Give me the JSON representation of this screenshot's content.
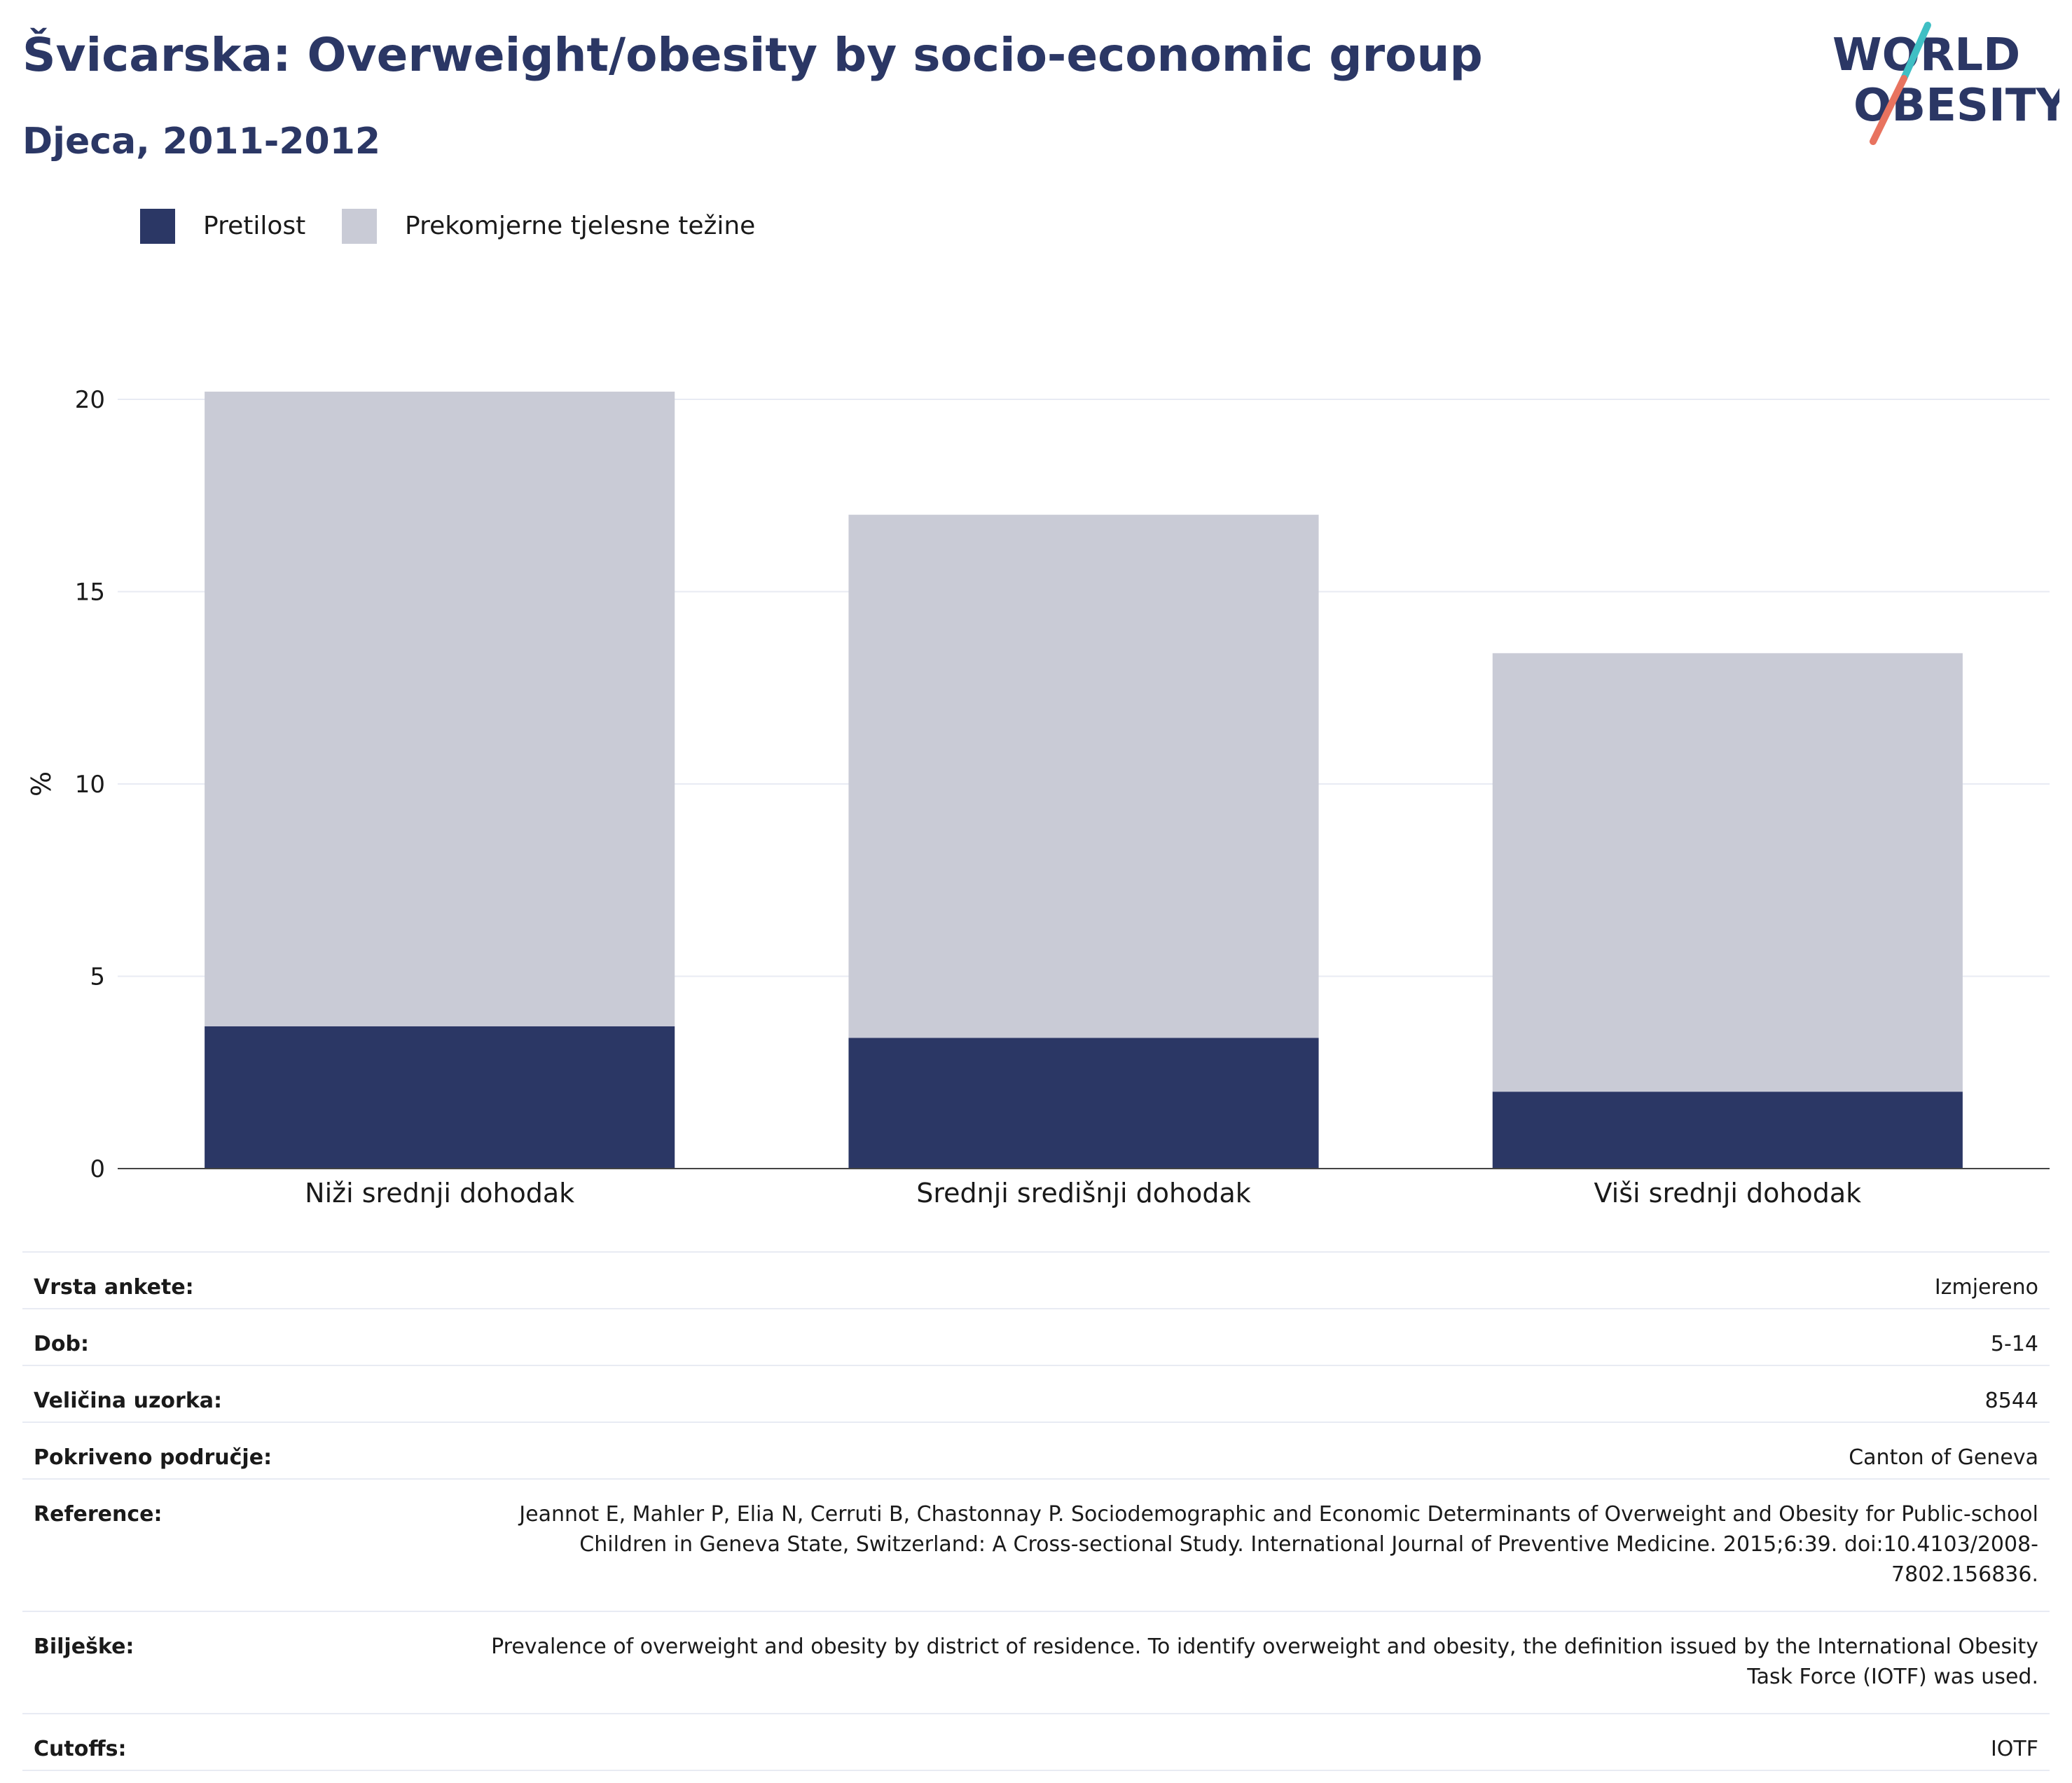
{
  "header": {
    "title": "Švicarska: Overweight/obesity by socio-economic group",
    "subtitle": "Djeca, 2011-2012",
    "logo_line1": "WORLD",
    "logo_line2": "OBESITY"
  },
  "colors": {
    "obesity": "#2b3765",
    "overweight": "#c9cbd6",
    "title": "#2b3765",
    "logo_teal": "#3fbfc4",
    "logo_coral": "#e8735f"
  },
  "chart_data": {
    "type": "bar",
    "stacked": true,
    "categories": [
      "Niži srednji dohodak",
      "Srednji središnji dohodak",
      "Viši srednji dohodak"
    ],
    "series": [
      {
        "name": "Pretilost",
        "values": [
          3.7,
          3.4,
          2.0
        ]
      },
      {
        "name": "Prekomjerne tjelesne težine",
        "values": [
          16.5,
          13.6,
          11.4
        ]
      }
    ],
    "ylabel": "%",
    "ylim": [
      0,
      20
    ],
    "yticks": [
      "0",
      "5",
      "10",
      "15",
      "20"
    ],
    "grid": true,
    "legend_position": "top-left"
  },
  "info": [
    {
      "label": "Vrsta ankete:",
      "value": "Izmjereno"
    },
    {
      "label": "Dob:",
      "value": "5-14"
    },
    {
      "label": "Veličina uzorka:",
      "value": "8544"
    },
    {
      "label": "Pokriveno područje:",
      "value": "Canton of Geneva"
    },
    {
      "label": "Reference:",
      "value": "Jeannot E, Mahler P, Elia N, Cerruti B, Chastonnay P. Sociodemographic and Economic Determinants of Overweight and Obesity for Public-school Children in Geneva State, Switzerland: A Cross-sectional Study. International Journal of Preventive Medicine. 2015;6:39. doi:10.4103/2008-7802.156836."
    },
    {
      "label": "Bilješke:",
      "value": "Prevalence of overweight and obesity by district of residence. To identify overweight and obesity, the definition issued by the International Obesity Task Force (IOTF) was used."
    },
    {
      "label": "Cutoffs:",
      "value": "IOTF"
    }
  ]
}
